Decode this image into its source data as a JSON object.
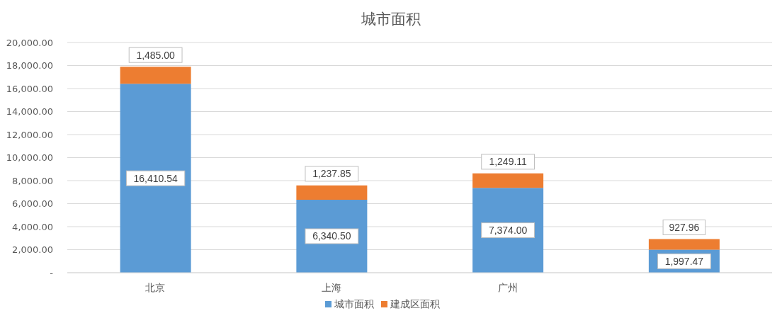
{
  "chart_data": {
    "type": "bar",
    "title": "城市面积",
    "categories": [
      "北京",
      "上海",
      "广州",
      null
    ],
    "stacked": true,
    "series": [
      {
        "name": "城市面积",
        "color": "#5b9bd5",
        "values": [
          16410.54,
          6340.5,
          7374,
          1997.47
        ],
        "value_labels": [
          "16,410.54",
          "6,340.50",
          "7,374.00",
          "1,997.47"
        ]
      },
      {
        "name": "建成区面积",
        "color": "#ed7d31",
        "values": [
          1485,
          1237.85,
          1249.11,
          927.96
        ],
        "value_labels": [
          "1,485.00",
          "1,237.85",
          "1,249.11",
          "927.96"
        ]
      }
    ],
    "ylim": [
      0,
      20000
    ],
    "yticks": [
      {
        "value": 0,
        "label": "-"
      },
      {
        "value": 2000,
        "label": "2,000.00"
      },
      {
        "value": 4000,
        "label": "4,000.00"
      },
      {
        "value": 6000,
        "label": "6,000.00"
      },
      {
        "value": 8000,
        "label": "8,000.00"
      },
      {
        "value": 10000,
        "label": "10,000.00"
      },
      {
        "value": 12000,
        "label": "12,000.00"
      },
      {
        "value": 14000,
        "label": "14,000.00"
      },
      {
        "value": 16000,
        "label": "16,000.00"
      },
      {
        "value": 18000,
        "label": "18,000.00"
      },
      {
        "value": 20000,
        "label": "20,000.00"
      }
    ],
    "grid": "y",
    "legend": "bottom"
  }
}
